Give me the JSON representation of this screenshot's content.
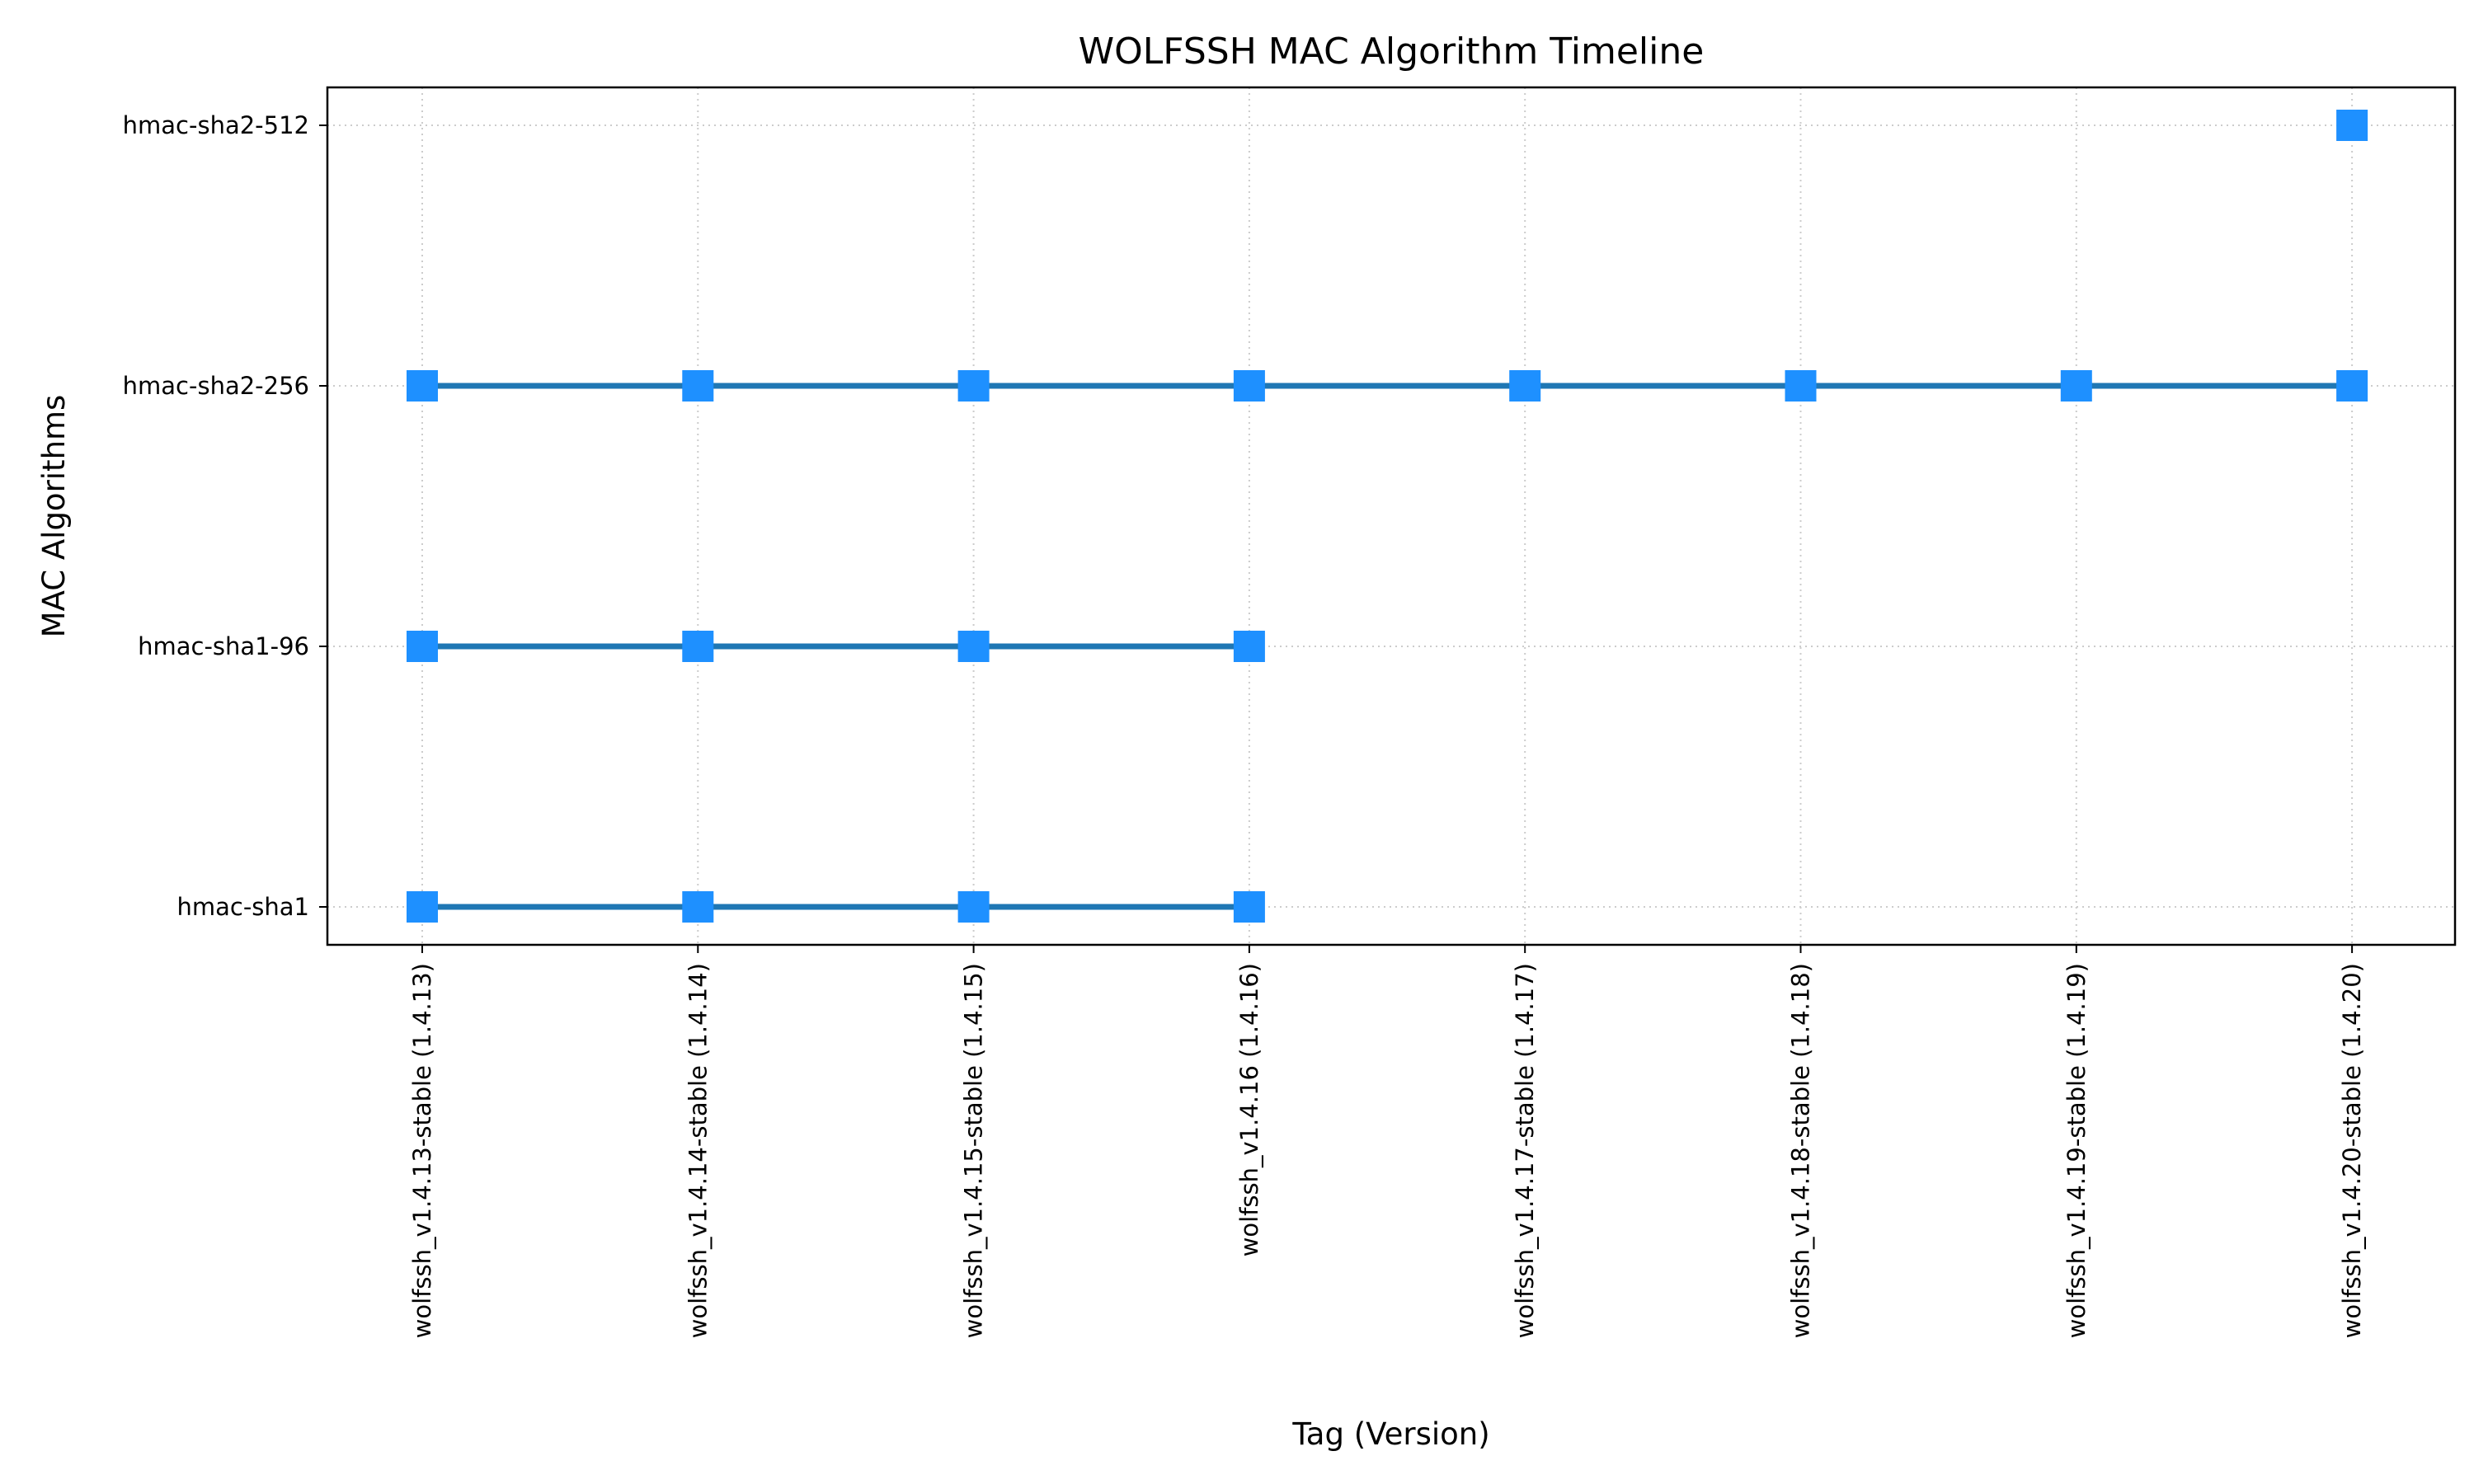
{
  "chart_data": {
    "type": "line",
    "title": "WOLFSSH MAC Algorithm Timeline",
    "xlabel": "Tag (Version)",
    "ylabel": "MAC Algorithms",
    "categories": [
      "wolfssh_v1.4.13-stable (1.4.13)",
      "wolfssh_v1.4.14-stable (1.4.14)",
      "wolfssh_v1.4.15-stable (1.4.15)",
      "wolfssh_v1.4.16 (1.4.16)",
      "wolfssh_v1.4.17-stable (1.4.17)",
      "wolfssh_v1.4.18-stable (1.4.18)",
      "wolfssh_v1.4.19-stable (1.4.19)",
      "wolfssh_v1.4.20-stable (1.4.20)"
    ],
    "y_categories": [
      "hmac-sha1",
      "hmac-sha1-96",
      "hmac-sha2-256",
      "hmac-sha2-512"
    ],
    "series": [
      {
        "y": "hmac-sha1",
        "present": [
          true,
          true,
          true,
          true,
          false,
          false,
          false,
          false
        ]
      },
      {
        "y": "hmac-sha1-96",
        "present": [
          true,
          true,
          true,
          true,
          false,
          false,
          false,
          false
        ]
      },
      {
        "y": "hmac-sha2-256",
        "present": [
          true,
          true,
          true,
          true,
          true,
          true,
          true,
          true
        ]
      },
      {
        "y": "hmac-sha2-512",
        "present": [
          false,
          false,
          false,
          false,
          false,
          false,
          false,
          true
        ]
      }
    ],
    "grid": true,
    "grid_style": "dotted",
    "colors": {
      "line": "#1f77b4",
      "marker": "#1e90ff",
      "grid": "#cccccc"
    }
  }
}
